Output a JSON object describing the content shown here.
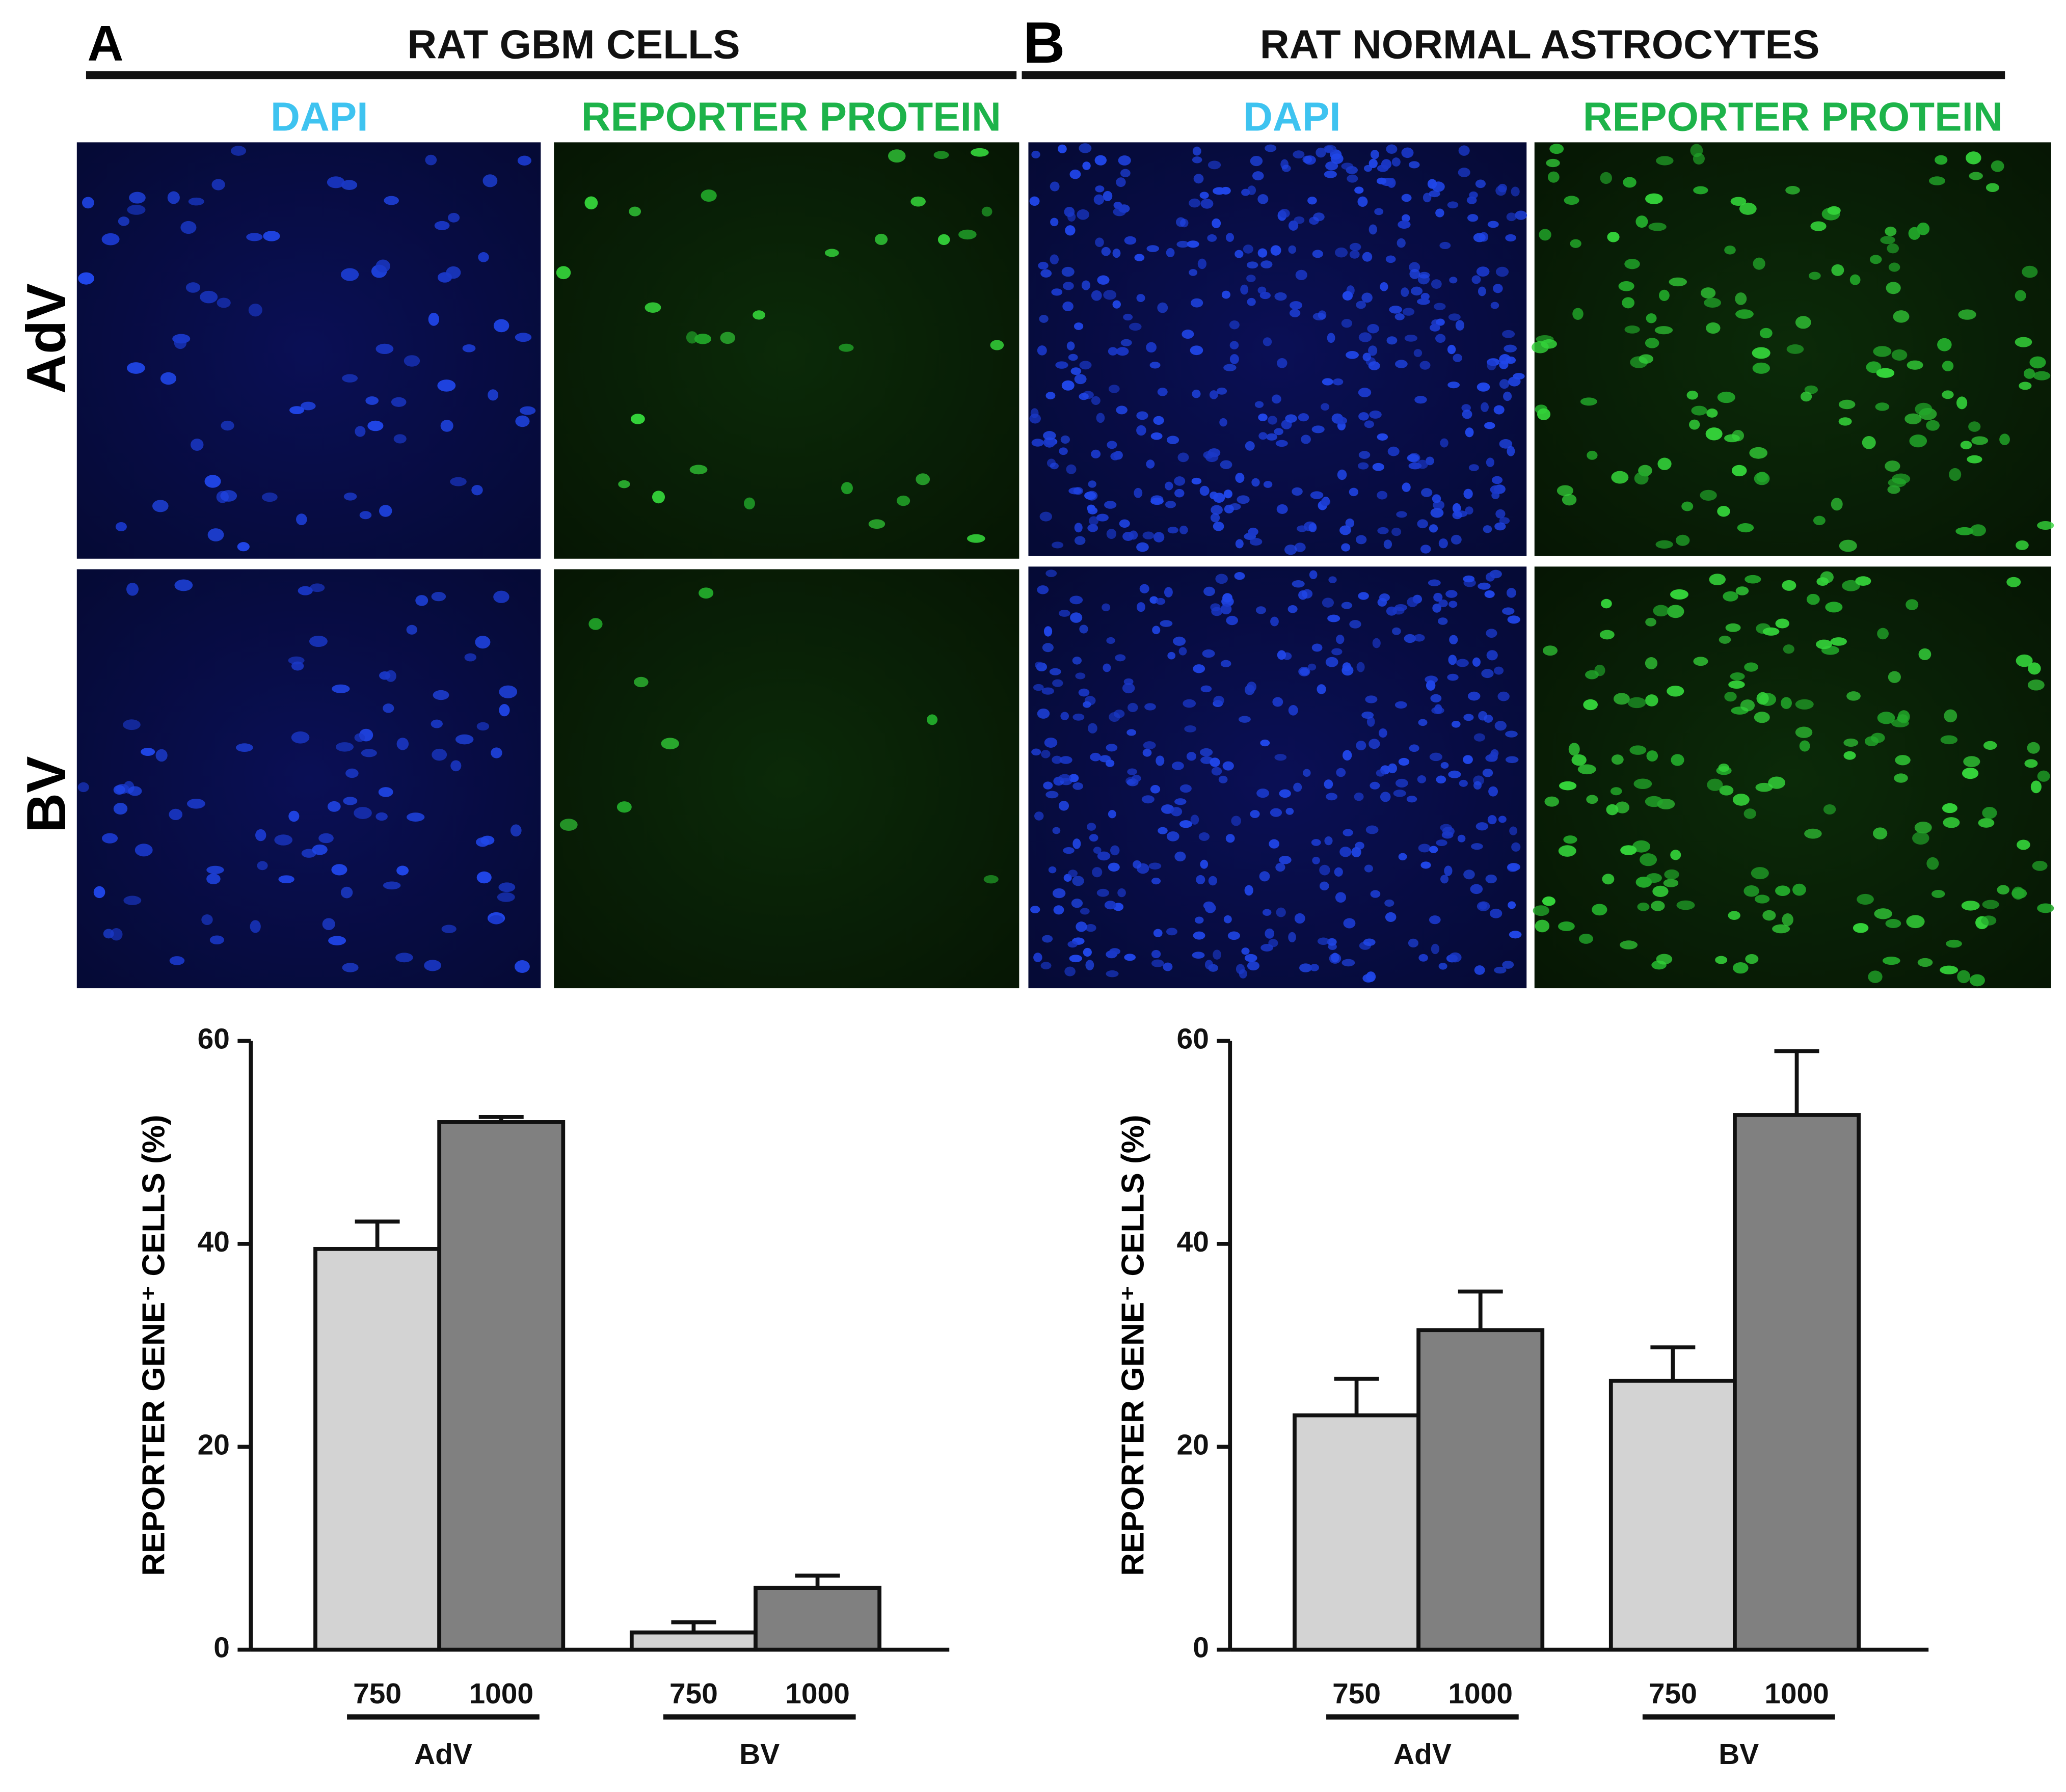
{
  "panels": [
    {
      "letter": "A",
      "title": "RAT GBM CELLS",
      "columns": [
        "DAPI",
        "REPORTER PROTEIN"
      ]
    },
    {
      "letter": "B",
      "title": "RAT NORMAL ASTROCYTES",
      "columns": [
        "DAPI",
        "REPORTER PROTEIN"
      ]
    }
  ],
  "rows": [
    "AdV",
    "BV"
  ],
  "chart_data": [
    {
      "type": "bar",
      "ylabel": "REPORTER GENE⁺ CELLS (%)",
      "categories": [
        "AdV",
        "BV"
      ],
      "series": [
        {
          "name": "750",
          "color": "#d3d3d3",
          "values": [
            39.5,
            1.7
          ],
          "errors": [
            2.7,
            1.0
          ]
        },
        {
          "name": "1000",
          "color": "#808080",
          "values": [
            52,
            6.1
          ],
          "errors": [
            0.5,
            1.2
          ]
        }
      ],
      "ylim": [
        0,
        60
      ],
      "yticks": [
        0,
        20,
        40,
        60
      ]
    },
    {
      "type": "bar",
      "ylabel": "REPORTER GENE⁺ CELLS (%)",
      "categories": [
        "AdV",
        "BV"
      ],
      "series": [
        {
          "name": "750",
          "color": "#d3d3d3",
          "values": [
            23.1,
            26.5
          ],
          "errors": [
            3.6,
            3.3
          ]
        },
        {
          "name": "1000",
          "color": "#808080",
          "values": [
            31.5,
            52.7
          ],
          "errors": [
            3.8,
            6.3
          ]
        }
      ],
      "ylim": [
        0,
        60
      ],
      "yticks": [
        0,
        20,
        40,
        60
      ]
    }
  ]
}
